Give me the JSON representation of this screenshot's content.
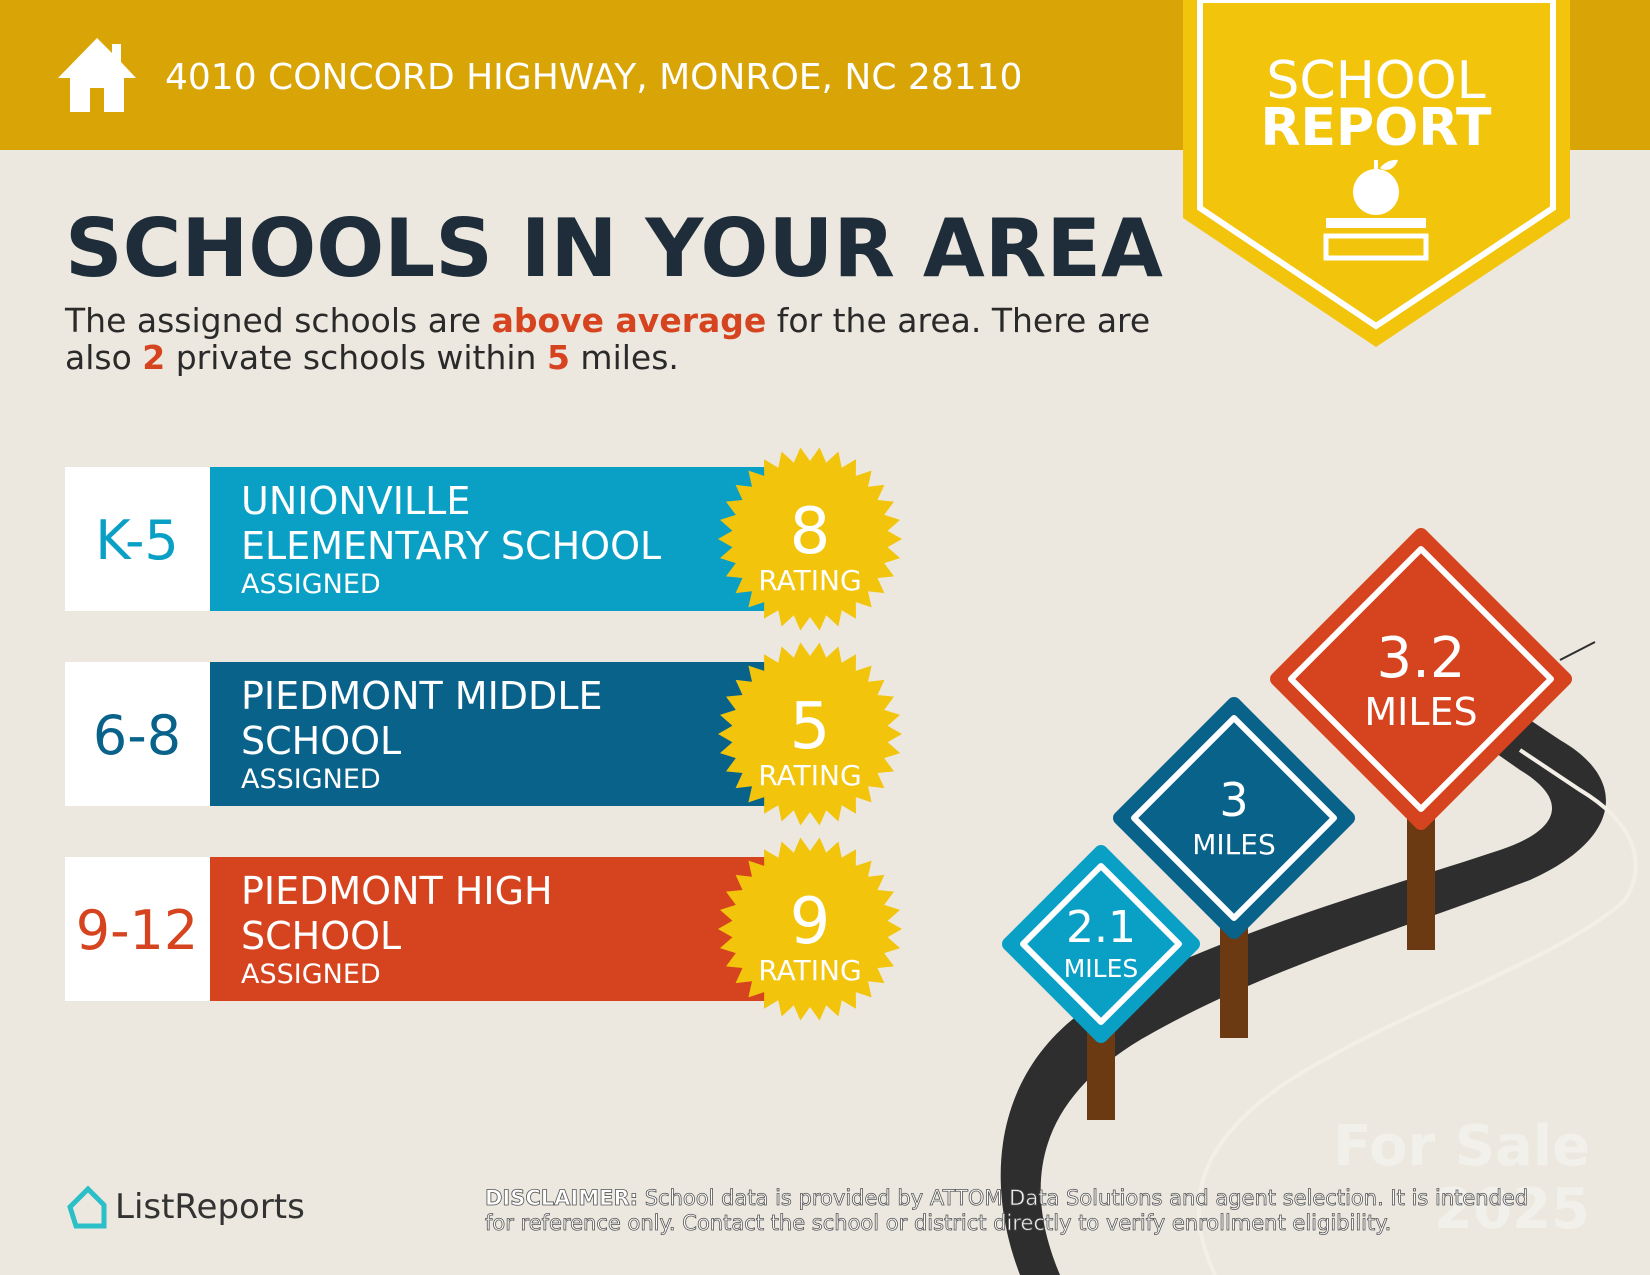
{
  "header": {
    "address": "4010 CONCORD HIGHWAY, MONROE, NC 28110"
  },
  "badge": {
    "lines": [
      "SCHOOL",
      "REPORT"
    ]
  },
  "title": "SCHOOLS IN YOUR AREA",
  "subtitle": {
    "lines": [
      [
        "The assigned schools are ",
        "above average",
        " for the area. There are"
      ],
      [
        "also ",
        "2",
        " private schools within ",
        "5",
        " miles."
      ]
    ]
  },
  "schools": [
    {
      "grades": "K-5",
      "name_lines": [
        "UNIONVILLE",
        "ELEMENTARY SCHOOL"
      ],
      "status": "ASSIGNED",
      "rating": "8",
      "rating_label": "RATING",
      "color": "#0aa0c5"
    },
    {
      "grades": "6-8",
      "name_lines": [
        "PIEDMONT MIDDLE",
        "SCHOOL"
      ],
      "status": "ASSIGNED",
      "rating": "5",
      "rating_label": "RATING",
      "color": "#09628a"
    },
    {
      "grades": "9-12",
      "name_lines": [
        "PIEDMONT HIGH",
        "SCHOOL"
      ],
      "status": "ASSIGNED",
      "rating": "9",
      "rating_label": "RATING",
      "color": "#d6431f"
    }
  ],
  "signs": [
    {
      "distance": "2.1",
      "unit": "MILES",
      "color": "#0aa0c5"
    },
    {
      "distance": "3",
      "unit": "MILES",
      "color": "#09628a"
    },
    {
      "distance": "3.2",
      "unit": "MILES",
      "color": "#d6431f"
    }
  ],
  "logo": "ListReports",
  "disclaimer": {
    "label": "DISCLAIMER:",
    "lines": [
      " School data is provided by ATTOM Data Solutions and agent selection. It is intended",
      "for reference only. Contact the school or district directly to verify enrollment eligibility."
    ]
  },
  "watermark": [
    "For Sale",
    "2025"
  ]
}
